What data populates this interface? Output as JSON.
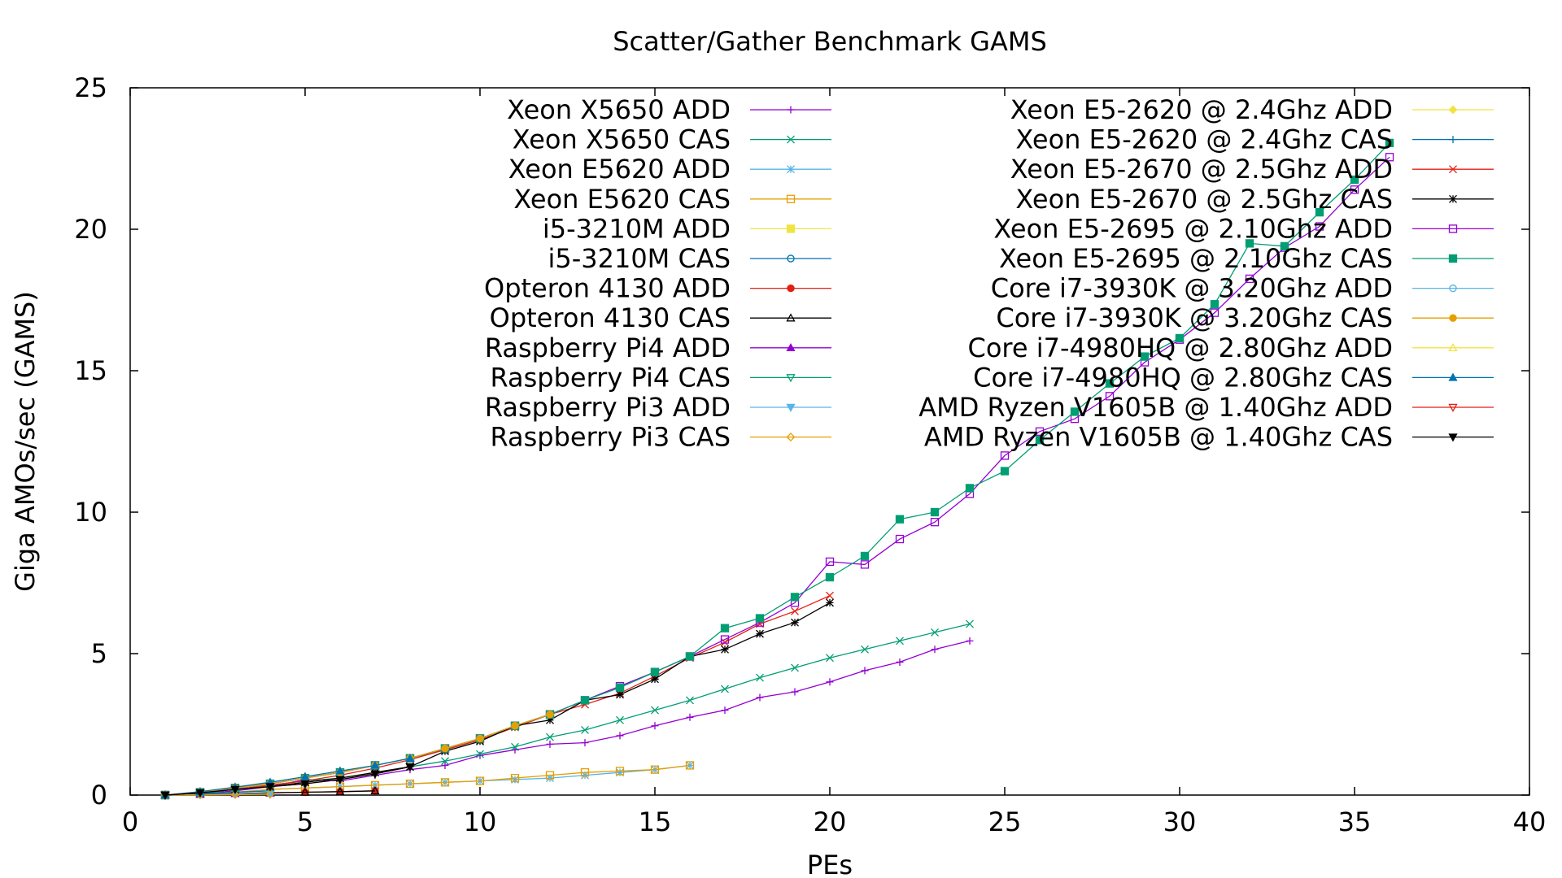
{
  "chart_data": {
    "type": "line",
    "title": "Scatter/Gather Benchmark GAMS",
    "xlabel": "PEs",
    "ylabel": "Giga AMOs/sec (GAMS)",
    "xlim": [
      0,
      40
    ],
    "ylim": [
      0,
      25
    ],
    "xticks": [
      0,
      5,
      10,
      15,
      20,
      25,
      30,
      35,
      40
    ],
    "yticks": [
      0,
      5,
      10,
      15,
      20,
      25
    ],
    "grid": false,
    "legend_position": "top-right, two columns",
    "series": [
      {
        "name": "Xeon X5650 ADD",
        "color": "#9400d3",
        "marker": "plus",
        "x": [
          1,
          2,
          3,
          4,
          5,
          6,
          7,
          8,
          9,
          10,
          11,
          12,
          13,
          14,
          15,
          16,
          17,
          18,
          19,
          20,
          21,
          22,
          23,
          24
        ],
        "y": [
          0,
          0.05,
          0.15,
          0.3,
          0.55,
          0.5,
          0.7,
          0.9,
          1.05,
          1.4,
          1.6,
          1.8,
          1.85,
          2.1,
          2.45,
          2.75,
          3.0,
          3.45,
          3.65,
          4.0,
          4.4,
          4.7,
          5.15,
          5.45
        ]
      },
      {
        "name": "Xeon X5650 CAS",
        "color": "#009e73",
        "marker": "cross",
        "x": [
          1,
          2,
          3,
          4,
          5,
          6,
          7,
          8,
          9,
          10,
          11,
          12,
          13,
          14,
          15,
          16,
          17,
          18,
          19,
          20,
          21,
          22,
          23,
          24
        ],
        "y": [
          0,
          0.05,
          0.2,
          0.35,
          0.5,
          0.6,
          0.8,
          1.0,
          1.2,
          1.45,
          1.7,
          2.05,
          2.3,
          2.65,
          3.0,
          3.35,
          3.75,
          4.15,
          4.5,
          4.85,
          5.15,
          5.45,
          5.75,
          6.05
        ]
      },
      {
        "name": "Xeon E5620 ADD",
        "color": "#56b4e9",
        "marker": "star",
        "x": [
          1,
          2,
          3,
          4,
          5,
          6,
          7,
          8,
          9,
          10,
          11,
          12,
          13,
          14,
          15,
          16
        ],
        "y": [
          0,
          0.05,
          0.1,
          0.2,
          0.25,
          0.3,
          0.35,
          0.4,
          0.45,
          0.5,
          0.55,
          0.6,
          0.7,
          0.8,
          0.9,
          1.05
        ]
      },
      {
        "name": "Xeon E5620 CAS",
        "color": "#e69f00",
        "marker": "square-open",
        "x": [
          1,
          2,
          3,
          4,
          5,
          6,
          7,
          8,
          9,
          10,
          11,
          12,
          13,
          14,
          15,
          16
        ],
        "y": [
          0,
          0.05,
          0.1,
          0.2,
          0.25,
          0.3,
          0.35,
          0.4,
          0.45,
          0.5,
          0.6,
          0.7,
          0.8,
          0.85,
          0.9,
          1.05
        ]
      },
      {
        "name": "i5-3210M ADD",
        "color": "#f0e442",
        "marker": "square-filled",
        "x": [
          1,
          2,
          3,
          4
        ],
        "y": [
          0,
          0.1,
          0.2,
          0.3
        ]
      },
      {
        "name": "i5-3210M CAS",
        "color": "#0072b2",
        "marker": "circle-open",
        "x": [
          1,
          2,
          3,
          4
        ],
        "y": [
          0,
          0.05,
          0.1,
          0.15
        ]
      },
      {
        "name": "Opteron 4130 ADD",
        "color": "#e51e10",
        "marker": "circle-filled",
        "x": [
          1,
          2,
          3,
          4,
          5,
          6,
          7
        ],
        "y": [
          0,
          0.03,
          0.05,
          0.08,
          0.1,
          0.12,
          0.15
        ]
      },
      {
        "name": "Opteron 4130 CAS",
        "color": "#000000",
        "marker": "triangle-open",
        "x": [
          1,
          2,
          3,
          4,
          5,
          6,
          7
        ],
        "y": [
          0,
          0.03,
          0.05,
          0.08,
          0.1,
          0.12,
          0.15
        ]
      },
      {
        "name": "Raspberry Pi4 ADD",
        "color": "#9400d3",
        "marker": "triangle-filled",
        "x": [
          1,
          2,
          3,
          4
        ],
        "y": [
          0,
          0.02,
          0.05,
          0.07
        ]
      },
      {
        "name": "Raspberry Pi4 CAS",
        "color": "#009e73",
        "marker": "triangle-down-open",
        "x": [
          1,
          2,
          3,
          4
        ],
        "y": [
          0,
          0.02,
          0.04,
          0.06
        ]
      },
      {
        "name": "Raspberry Pi3 ADD",
        "color": "#56b4e9",
        "marker": "triangle-down-filled",
        "x": [
          1,
          2,
          3,
          4
        ],
        "y": [
          0,
          0.01,
          0.02,
          0.03
        ]
      },
      {
        "name": "Raspberry Pi3 CAS",
        "color": "#e69f00",
        "marker": "diamond-open",
        "x": [
          1,
          2,
          3,
          4
        ],
        "y": [
          0,
          0.01,
          0.02,
          0.03
        ]
      },
      {
        "name": "Xeon E5-2620 @ 2.4Ghz ADD",
        "color": "#f0e442",
        "marker": "diamond-filled",
        "x": [
          1,
          2,
          3,
          4,
          5,
          6,
          7,
          8,
          9,
          10,
          11,
          12
        ],
        "y": [
          0,
          0.1,
          0.25,
          0.4,
          0.6,
          0.8,
          1.05,
          1.3,
          1.6,
          1.95,
          2.4,
          2.85
        ]
      },
      {
        "name": "Xeon E5-2620 @ 2.4Ghz CAS",
        "color": "#0072b2",
        "marker": "plus",
        "x": [
          1,
          2,
          3,
          4,
          5,
          6,
          7,
          8,
          9,
          10,
          11,
          12
        ],
        "y": [
          0,
          0.1,
          0.25,
          0.4,
          0.6,
          0.8,
          1.05,
          1.3,
          1.6,
          1.95,
          2.4,
          2.85
        ]
      },
      {
        "name": "Xeon E5-2670 @ 2.5Ghz ADD",
        "color": "#e51e10",
        "marker": "cross",
        "x": [
          1,
          2,
          3,
          4,
          5,
          6,
          7,
          8,
          9,
          10,
          11,
          12,
          13,
          14,
          15,
          16,
          17,
          18,
          19,
          20
        ],
        "y": [
          0,
          0.08,
          0.2,
          0.35,
          0.5,
          0.7,
          0.95,
          1.25,
          1.6,
          1.95,
          2.4,
          2.85,
          3.2,
          3.6,
          4.2,
          4.85,
          5.4,
          6.05,
          6.5,
          7.05
        ]
      },
      {
        "name": "Xeon E5-2670 @ 2.5Ghz CAS",
        "color": "#000000",
        "marker": "star",
        "x": [
          1,
          2,
          3,
          4,
          5,
          6,
          7,
          8,
          9,
          10,
          11,
          12,
          13,
          14,
          15,
          16,
          17,
          18,
          19,
          20
        ],
        "y": [
          0,
          0.08,
          0.2,
          0.3,
          0.45,
          0.6,
          0.8,
          1.0,
          1.55,
          1.9,
          2.45,
          2.65,
          3.35,
          3.55,
          4.1,
          4.9,
          5.15,
          5.7,
          6.1,
          6.8
        ]
      },
      {
        "name": "Xeon E5-2695 @ 2.10Ghz ADD",
        "color": "#9400d3",
        "marker": "square-open",
        "x": [
          1,
          2,
          3,
          4,
          5,
          6,
          7,
          8,
          9,
          10,
          11,
          12,
          13,
          14,
          15,
          16,
          17,
          18,
          19,
          20,
          21,
          22,
          23,
          24,
          25,
          26,
          27,
          28,
          29,
          30,
          31,
          32,
          33,
          34,
          35,
          36
        ],
        "y": [
          0,
          0.1,
          0.25,
          0.4,
          0.6,
          0.8,
          1.05,
          1.3,
          1.65,
          2.0,
          2.45,
          2.85,
          3.35,
          3.85,
          4.35,
          4.9,
          5.5,
          6.1,
          6.8,
          8.25,
          8.15,
          9.05,
          9.65,
          10.65,
          12.0,
          12.85,
          13.3,
          14.1,
          15.3,
          16.1,
          17.05,
          18.25,
          19.35,
          20.1,
          21.4,
          22.55
        ]
      },
      {
        "name": "Xeon E5-2695 @ 2.10Ghz CAS",
        "color": "#009e73",
        "marker": "square-filled",
        "x": [
          1,
          2,
          3,
          4,
          5,
          6,
          7,
          8,
          9,
          10,
          11,
          12,
          13,
          14,
          15,
          16,
          17,
          18,
          19,
          20,
          21,
          22,
          23,
          24,
          25,
          26,
          27,
          28,
          29,
          30,
          31,
          32,
          33,
          34,
          35,
          36
        ],
        "y": [
          0,
          0.1,
          0.25,
          0.4,
          0.6,
          0.8,
          1.05,
          1.3,
          1.65,
          2.0,
          2.45,
          2.85,
          3.35,
          3.8,
          4.35,
          4.9,
          5.9,
          6.25,
          7.0,
          7.7,
          8.45,
          9.75,
          10.0,
          10.85,
          11.45,
          12.55,
          13.55,
          14.55,
          15.5,
          16.15,
          17.35,
          19.5,
          19.4,
          20.6,
          21.75,
          23.05
        ]
      },
      {
        "name": "Core i7-3930K @ 3.20Ghz ADD",
        "color": "#56b4e9",
        "marker": "circle-open",
        "x": [
          1,
          2,
          3,
          4,
          5,
          6,
          7,
          8,
          9,
          10,
          11,
          12
        ],
        "y": [
          0,
          0.1,
          0.25,
          0.4,
          0.6,
          0.8,
          1.05,
          1.3,
          1.65,
          2.0,
          2.45,
          2.85
        ]
      },
      {
        "name": "Core i7-3930K @ 3.20Ghz CAS",
        "color": "#e69f00",
        "marker": "circle-filled",
        "x": [
          1,
          2,
          3,
          4,
          5,
          6,
          7,
          8,
          9,
          10,
          11,
          12
        ],
        "y": [
          0,
          0.1,
          0.25,
          0.4,
          0.6,
          0.8,
          1.05,
          1.3,
          1.65,
          2.0,
          2.45,
          2.85
        ]
      },
      {
        "name": "Core i7-4980HQ @ 2.80Ghz ADD",
        "color": "#f0e442",
        "marker": "triangle-open",
        "x": [
          1,
          2,
          3,
          4,
          5,
          6,
          7,
          8
        ],
        "y": [
          0,
          0.12,
          0.28,
          0.45,
          0.65,
          0.85,
          1.05,
          1.3
        ]
      },
      {
        "name": "Core i7-4980HQ @ 2.80Ghz CAS",
        "color": "#0072b2",
        "marker": "triangle-filled",
        "x": [
          1,
          2,
          3,
          4,
          5,
          6,
          7,
          8
        ],
        "y": [
          0,
          0.12,
          0.28,
          0.45,
          0.65,
          0.85,
          1.05,
          1.3
        ]
      },
      {
        "name": "AMD Ryzen V1605B @ 1.40Ghz ADD",
        "color": "#e51e10",
        "marker": "triangle-down-open",
        "x": [
          1,
          2,
          3,
          4,
          5,
          6,
          7,
          8
        ],
        "y": [
          0,
          0.08,
          0.2,
          0.3,
          0.4,
          0.55,
          0.75,
          1.0
        ]
      },
      {
        "name": "AMD Ryzen V1605B @ 1.40Ghz CAS",
        "color": "#000000",
        "marker": "triangle-down-filled",
        "x": [
          1,
          2,
          3,
          4,
          5,
          6,
          7,
          8
        ],
        "y": [
          0,
          0.08,
          0.2,
          0.3,
          0.4,
          0.55,
          0.75,
          1.0
        ]
      }
    ]
  }
}
